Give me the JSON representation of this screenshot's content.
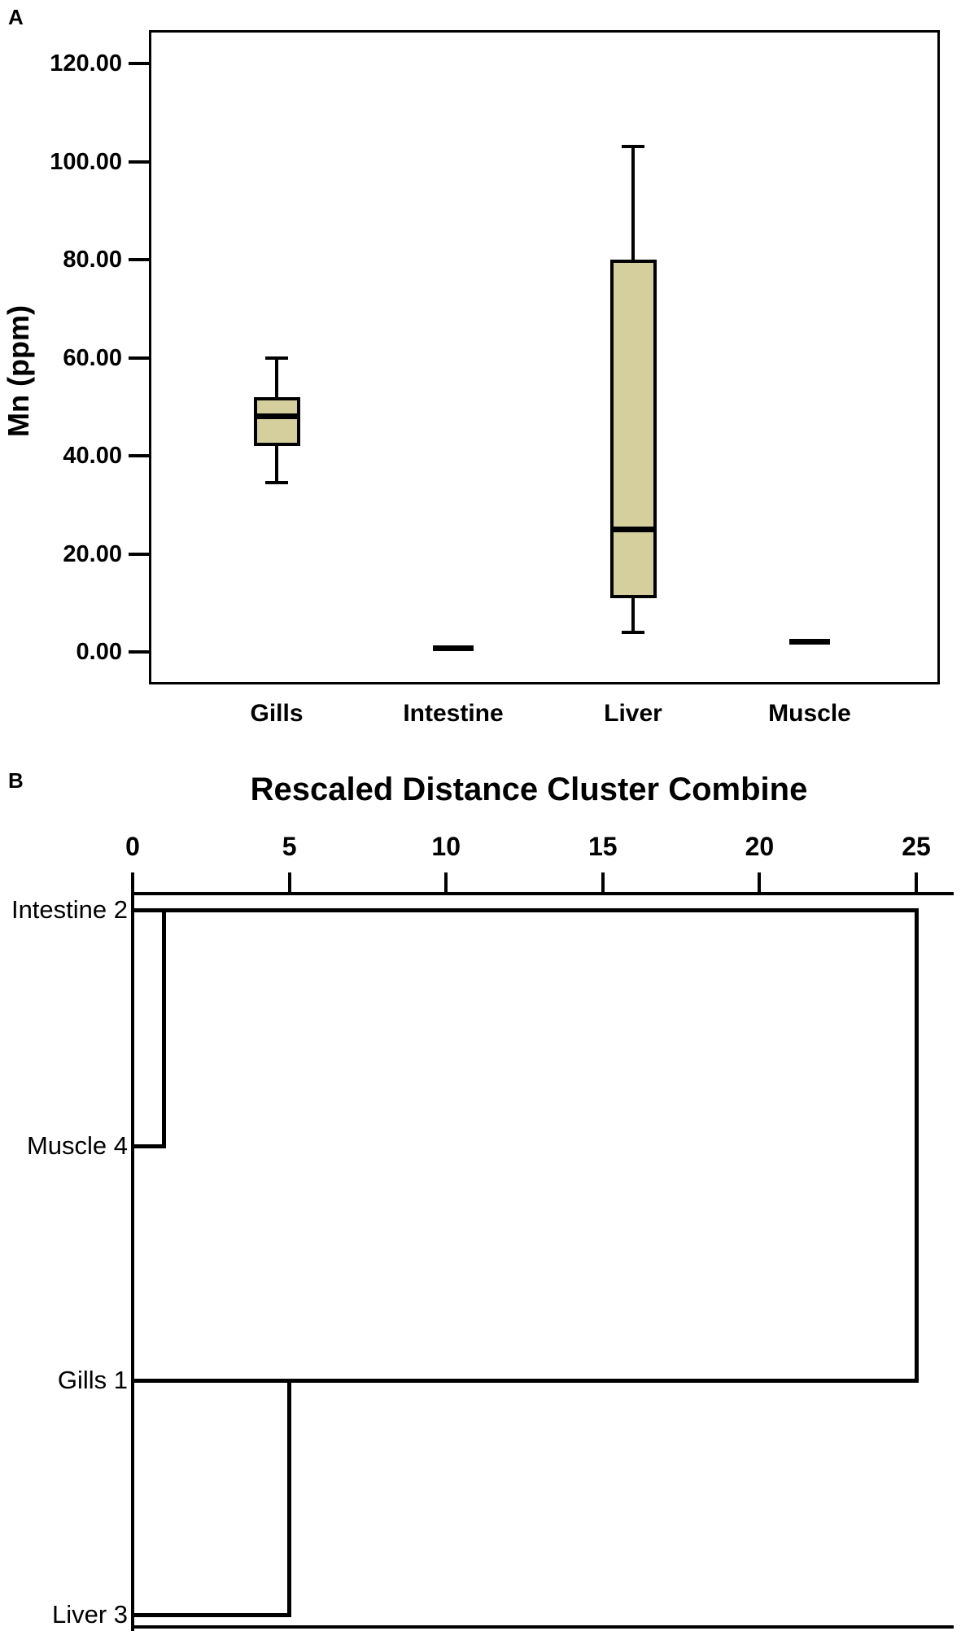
{
  "figure": {
    "panel_a": {
      "panel_label": "A",
      "y_axis_label": "Mn (ppm)"
    },
    "panel_b": {
      "panel_label": "B",
      "title": "Rescaled Distance Cluster Combine"
    }
  },
  "chart_data": [
    {
      "type": "box",
      "panel": "A",
      "ylabel": "Mn (ppm)",
      "ylim": [
        0,
        130
      ],
      "grid": false,
      "y_tick_values": [
        0,
        20,
        40,
        60,
        80,
        100,
        120
      ],
      "y_tick_labels": [
        "0.00",
        "20.00",
        "40.00",
        "60.00",
        "80.00",
        "100.00",
        "120.00"
      ],
      "categories": [
        "Gills",
        "Intestine",
        "Liver",
        "Muscle"
      ],
      "box_fill_color": "#d5cf9d",
      "line_color": "#000000",
      "series": [
        {
          "name": "Gills",
          "flat": false,
          "min": 34.5,
          "q1": 42,
          "median": 48,
          "q3": 52,
          "max": 60
        },
        {
          "name": "Intestine",
          "flat": true,
          "min": 0.7,
          "q1": 0.7,
          "median": 0.7,
          "q3": 0.7,
          "max": 0.7
        },
        {
          "name": "Liver",
          "flat": false,
          "min": 4,
          "q1": 11,
          "median": 25,
          "q3": 80,
          "max": 103
        },
        {
          "name": "Muscle",
          "flat": true,
          "min": 2,
          "q1": 2,
          "median": 2,
          "q3": 2,
          "max": 2
        }
      ]
    },
    {
      "type": "dendrogram",
      "panel": "B",
      "title": "Rescaled Distance Cluster Combine",
      "orientation": "left-to-right",
      "xlim": [
        0,
        25
      ],
      "x_tick_values": [
        0,
        5,
        10,
        15,
        20,
        25
      ],
      "x_tick_labels": [
        "0",
        "5",
        "10",
        "15",
        "20",
        "25"
      ],
      "leaves": [
        "Intestine 2",
        "Muscle 4",
        "Gills 1",
        "Liver 3"
      ],
      "merges": [
        {
          "a": 0,
          "b": 1,
          "distance": 1.0,
          "note": "Intestine 2 + Muscle 4"
        },
        {
          "a": 2,
          "b": 3,
          "distance": 5.0,
          "note": "Gills 1 + Liver 3"
        },
        {
          "a": 4,
          "b": 5,
          "distance": 25.0,
          "note": "both clusters combine"
        }
      ]
    }
  ]
}
